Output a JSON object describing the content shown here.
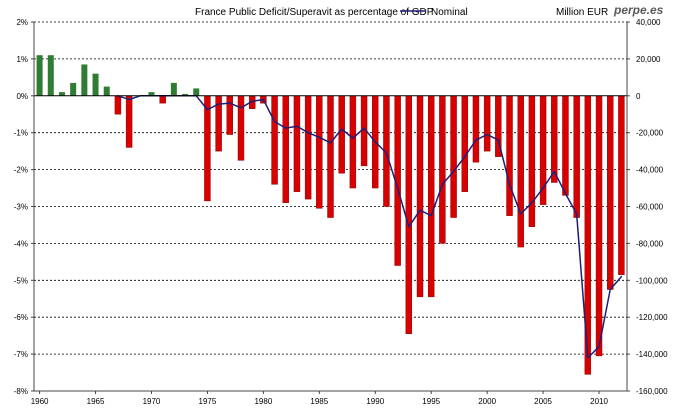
{
  "chart_data": {
    "type": "bar",
    "title": "France Public Deficit/Superavit as percentage of GDP",
    "brand": "perpe.es",
    "y2_unit_label": "Million EUR",
    "xlabel": "",
    "ylabel": "",
    "grid": true,
    "legend": [
      {
        "name": "Nominal",
        "type": "line",
        "color": "#1f1f7a"
      }
    ],
    "y_axis": {
      "ylim": [
        -8,
        2
      ],
      "ticks": [
        {
          "value": 2,
          "label": "2%"
        },
        {
          "value": 1,
          "label": "1%"
        },
        {
          "value": 0,
          "label": "0%"
        },
        {
          "value": -1,
          "label": "-1%"
        },
        {
          "value": -2,
          "label": "-2%"
        },
        {
          "value": -3,
          "label": "-3%"
        },
        {
          "value": -4,
          "label": "-4%"
        },
        {
          "value": -5,
          "label": "-5%"
        },
        {
          "value": -6,
          "label": "-6%"
        },
        {
          "value": -7,
          "label": "-7%"
        },
        {
          "value": -8,
          "label": "-8%"
        }
      ]
    },
    "y2_axis": {
      "ylim": [
        -160000,
        40000
      ],
      "ticks": [
        {
          "value": 40000,
          "label": "40,000"
        },
        {
          "value": 20000,
          "label": "20,000"
        },
        {
          "value": 0,
          "label": "0"
        },
        {
          "value": -20000,
          "label": "-20,000"
        },
        {
          "value": -40000,
          "label": "-40,000"
        },
        {
          "value": -60000,
          "label": "-60,000"
        },
        {
          "value": -80000,
          "label": "-80,000"
        },
        {
          "value": -100000,
          "label": "-100,000"
        },
        {
          "value": -120000,
          "label": "-120,000"
        },
        {
          "value": -140000,
          "label": "-140,000"
        },
        {
          "value": -160000,
          "label": "-160,000"
        }
      ]
    },
    "x_axis": {
      "xlim": [
        1960,
        2012
      ],
      "ticks": [
        {
          "value": 1960,
          "label": "1960"
        },
        {
          "value": 1965,
          "label": "1965"
        },
        {
          "value": 1970,
          "label": "1970"
        },
        {
          "value": 1975,
          "label": "1975"
        },
        {
          "value": 1980,
          "label": "1980"
        },
        {
          "value": 1985,
          "label": "1985"
        },
        {
          "value": 1990,
          "label": "1990"
        },
        {
          "value": 1995,
          "label": "1995"
        },
        {
          "value": 2000,
          "label": "2000"
        },
        {
          "value": 2005,
          "label": "2005"
        },
        {
          "value": 2010,
          "label": "2010"
        }
      ]
    },
    "colors": {
      "positive": "#2f7d32",
      "negative": "#d90000",
      "line": "#1f1f7a",
      "grid": "#000000",
      "axis": "#444444"
    },
    "series": [
      {
        "name": "Deficit/Superavit as percentage of GDP",
        "type": "bar",
        "points": [
          {
            "year": 1960,
            "value": 1.1
          },
          {
            "year": 1961,
            "value": 1.1
          },
          {
            "year": 1962,
            "value": 0.1
          },
          {
            "year": 1963,
            "value": 0.35
          },
          {
            "year": 1964,
            "value": 0.85
          },
          {
            "year": 1965,
            "value": 0.6
          },
          {
            "year": 1966,
            "value": 0.25
          },
          {
            "year": 1967,
            "value": -0.5
          },
          {
            "year": 1968,
            "value": -1.4
          },
          {
            "year": 1969,
            "value": 0.0
          },
          {
            "year": 1970,
            "value": 0.1
          },
          {
            "year": 1971,
            "value": -0.2
          },
          {
            "year": 1972,
            "value": 0.35
          },
          {
            "year": 1973,
            "value": 0.05
          },
          {
            "year": 1974,
            "value": 0.2
          },
          {
            "year": 1975,
            "value": -2.85
          },
          {
            "year": 1976,
            "value": -1.5
          },
          {
            "year": 1977,
            "value": -1.05
          },
          {
            "year": 1978,
            "value": -1.75
          },
          {
            "year": 1979,
            "value": -0.35
          },
          {
            "year": 1980,
            "value": -0.2
          },
          {
            "year": 1981,
            "value": -2.4
          },
          {
            "year": 1982,
            "value": -2.9
          },
          {
            "year": 1983,
            "value": -2.6
          },
          {
            "year": 1984,
            "value": -2.8
          },
          {
            "year": 1985,
            "value": -3.05
          },
          {
            "year": 1986,
            "value": -3.3
          },
          {
            "year": 1987,
            "value": -2.1
          },
          {
            "year": 1988,
            "value": -2.5
          },
          {
            "year": 1989,
            "value": -1.9
          },
          {
            "year": 1990,
            "value": -2.5
          },
          {
            "year": 1991,
            "value": -3.0
          },
          {
            "year": 1992,
            "value": -4.6
          },
          {
            "year": 1993,
            "value": -6.45
          },
          {
            "year": 1994,
            "value": -5.45
          },
          {
            "year": 1995,
            "value": -5.45
          },
          {
            "year": 1996,
            "value": -4.0
          },
          {
            "year": 1997,
            "value": -3.3
          },
          {
            "year": 1998,
            "value": -2.6
          },
          {
            "year": 1999,
            "value": -1.8
          },
          {
            "year": 2000,
            "value": -1.5
          },
          {
            "year": 2001,
            "value": -1.65
          },
          {
            "year": 2002,
            "value": -3.25
          },
          {
            "year": 2003,
            "value": -4.1
          },
          {
            "year": 2004,
            "value": -3.55
          },
          {
            "year": 2005,
            "value": -2.95
          },
          {
            "year": 2006,
            "value": -2.35
          },
          {
            "year": 2007,
            "value": -2.7
          },
          {
            "year": 2008,
            "value": -3.3
          },
          {
            "year": 2009,
            "value": -7.55
          },
          {
            "year": 2010,
            "value": -7.05
          },
          {
            "year": 2011,
            "value": -5.25
          },
          {
            "year": 2012,
            "value": -4.85
          }
        ]
      },
      {
        "name": "Nominal",
        "type": "line",
        "unit": "Million EUR",
        "points": [
          {
            "year": 1967,
            "value": 0
          },
          {
            "year": 1968,
            "value": -2000
          },
          {
            "year": 1969,
            "value": 0
          },
          {
            "year": 1970,
            "value": 0
          },
          {
            "year": 1971,
            "value": 0
          },
          {
            "year": 1972,
            "value": 0
          },
          {
            "year": 1973,
            "value": 0
          },
          {
            "year": 1974,
            "value": 0
          },
          {
            "year": 1975,
            "value": -7500
          },
          {
            "year": 1976,
            "value": -4500
          },
          {
            "year": 1977,
            "value": -4000
          },
          {
            "year": 1978,
            "value": -6500
          },
          {
            "year": 1979,
            "value": -3000
          },
          {
            "year": 1980,
            "value": -2000
          },
          {
            "year": 1981,
            "value": -14000
          },
          {
            "year": 1982,
            "value": -17500
          },
          {
            "year": 1983,
            "value": -16500
          },
          {
            "year": 1984,
            "value": -20000
          },
          {
            "year": 1985,
            "value": -22500
          },
          {
            "year": 1986,
            "value": -25500
          },
          {
            "year": 1987,
            "value": -18000
          },
          {
            "year": 1988,
            "value": -23000
          },
          {
            "year": 1989,
            "value": -17500
          },
          {
            "year": 1990,
            "value": -25000
          },
          {
            "year": 1991,
            "value": -31000
          },
          {
            "year": 1992,
            "value": -50000
          },
          {
            "year": 1993,
            "value": -71000
          },
          {
            "year": 1994,
            "value": -62000
          },
          {
            "year": 1995,
            "value": -65000
          },
          {
            "year": 1996,
            "value": -48000
          },
          {
            "year": 1997,
            "value": -41000
          },
          {
            "year": 1998,
            "value": -33000
          },
          {
            "year": 1999,
            "value": -24000
          },
          {
            "year": 2000,
            "value": -21000
          },
          {
            "year": 2001,
            "value": -24000
          },
          {
            "year": 2002,
            "value": -48000
          },
          {
            "year": 2003,
            "value": -64000
          },
          {
            "year": 2004,
            "value": -58000
          },
          {
            "year": 2005,
            "value": -50000
          },
          {
            "year": 2006,
            "value": -41000
          },
          {
            "year": 2007,
            "value": -53000
          },
          {
            "year": 2008,
            "value": -64000
          },
          {
            "year": 2009,
            "value": -142000
          },
          {
            "year": 2010,
            "value": -136000
          },
          {
            "year": 2011,
            "value": -105000
          },
          {
            "year": 2012,
            "value": -98000
          }
        ]
      }
    ]
  }
}
